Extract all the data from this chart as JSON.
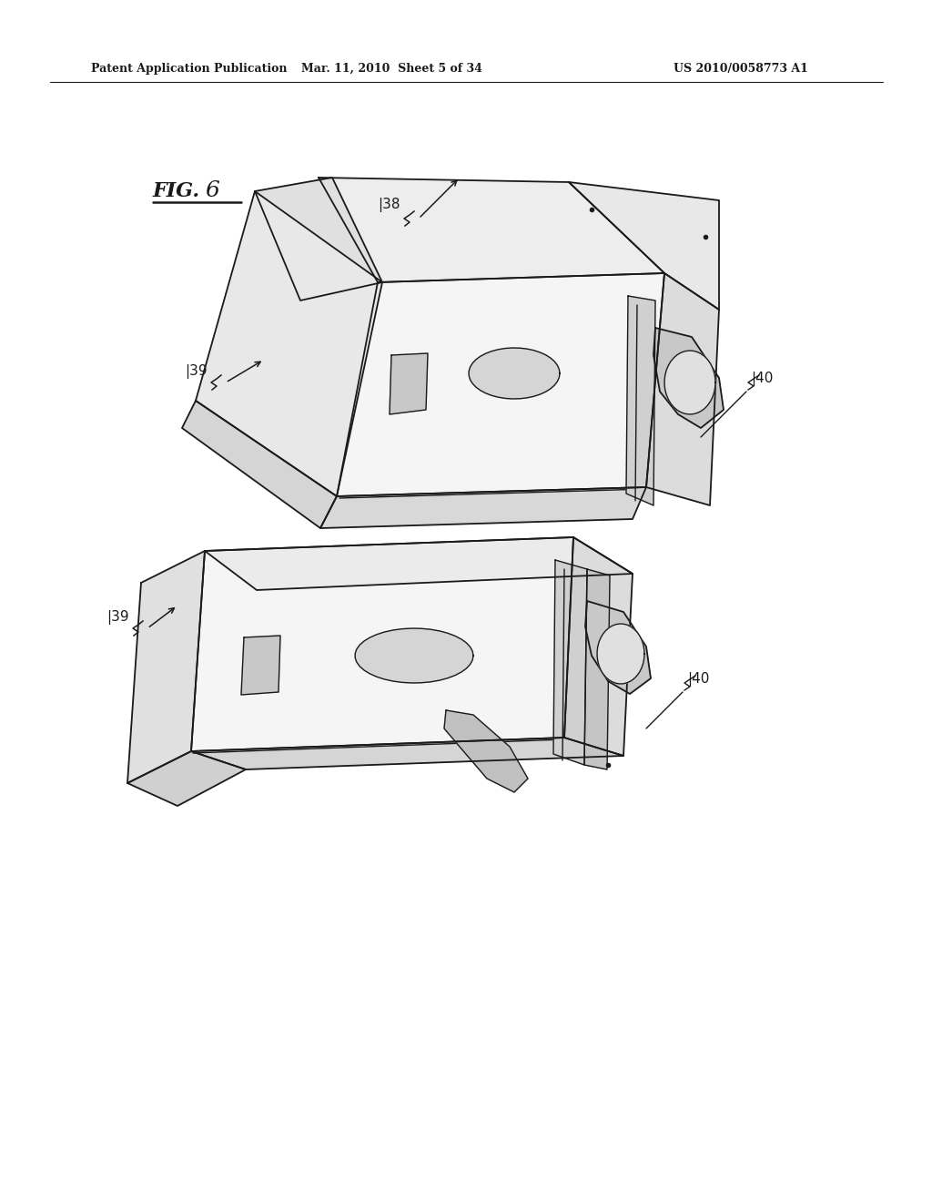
{
  "bg_color": "#ffffff",
  "line_color": "#1a1a1a",
  "header_left": "Patent Application Publication",
  "header_mid": "Mar. 11, 2010  Sheet 5 of 34",
  "header_right": "US 2010/0058773 A1",
  "fig_label_fig": "FIG.",
  "fig_label_num": "6"
}
